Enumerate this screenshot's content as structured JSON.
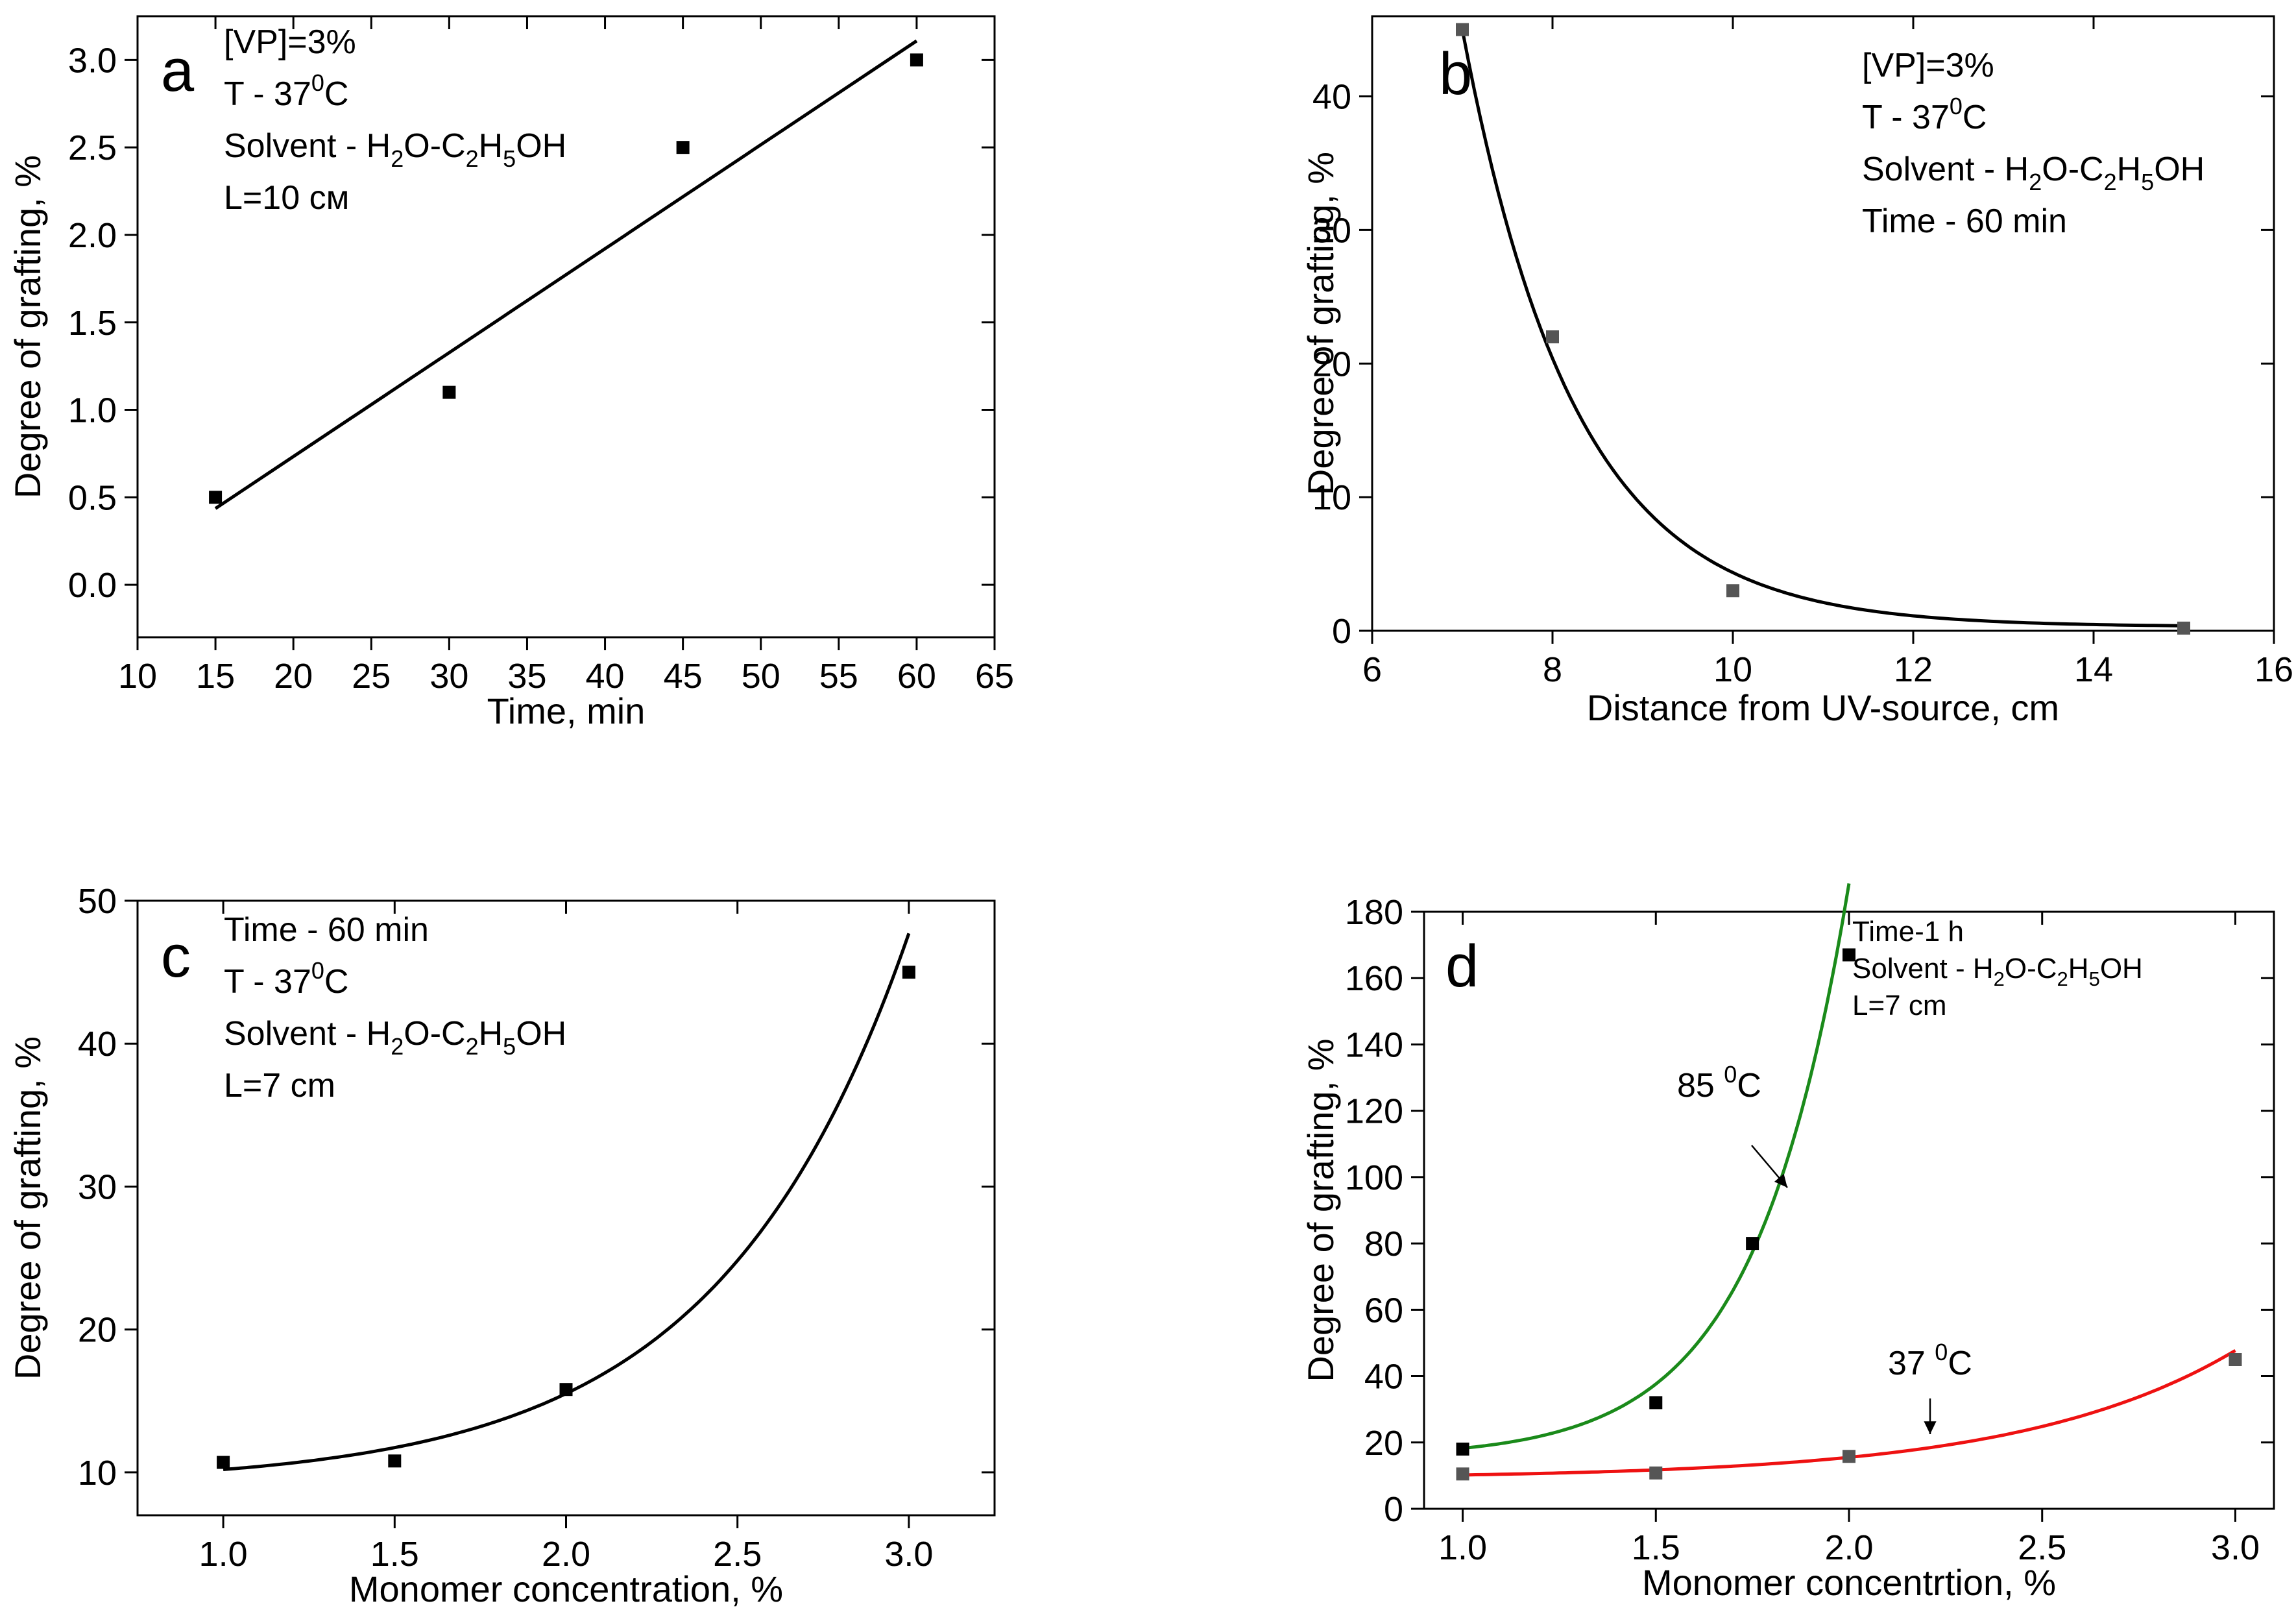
{
  "figure": {
    "panels": [
      {
        "letter": "a",
        "annotations": [
          {
            "parts": [
              {
                "t": "[VP]=3%"
              }
            ]
          },
          {
            "parts": [
              {
                "t": "T - 37"
              },
              {
                "t": "0",
                "sup": true
              },
              {
                "t": "C"
              }
            ]
          },
          {
            "parts": [
              {
                "t": "Solvent - H"
              },
              {
                "t": "2",
                "sub": true
              },
              {
                "t": "O-C"
              },
              {
                "t": "2",
                "sub": true
              },
              {
                "t": "H"
              },
              {
                "t": "5",
                "sub": true
              },
              {
                "t": "OH"
              }
            ]
          },
          {
            "parts": [
              {
                "t": "L=10 см"
              }
            ]
          }
        ]
      },
      {
        "letter": "b",
        "annotations": [
          {
            "parts": [
              {
                "t": "[VP]=3%"
              }
            ]
          },
          {
            "parts": [
              {
                "t": "T - 37"
              },
              {
                "t": "0",
                "sup": true
              },
              {
                "t": "C"
              }
            ]
          },
          {
            "parts": [
              {
                "t": "Solvent - H"
              },
              {
                "t": "2",
                "sub": true
              },
              {
                "t": "O-C"
              },
              {
                "t": "2",
                "sub": true
              },
              {
                "t": "H"
              },
              {
                "t": "5",
                "sub": true
              },
              {
                "t": "OH"
              }
            ]
          },
          {
            "parts": [
              {
                "t": "Time - 60 min"
              }
            ]
          }
        ]
      },
      {
        "letter": "c",
        "annotations": [
          {
            "parts": [
              {
                "t": "Time - 60 min"
              }
            ]
          },
          {
            "parts": [
              {
                "t": "T - 37"
              },
              {
                "t": "0",
                "sup": true
              },
              {
                "t": "C"
              }
            ]
          },
          {
            "parts": [
              {
                "t": "Solvent - H"
              },
              {
                "t": "2",
                "sub": true
              },
              {
                "t": "O-C"
              },
              {
                "t": "2",
                "sub": true
              },
              {
                "t": "H"
              },
              {
                "t": "5",
                "sub": true
              },
              {
                "t": "OH"
              }
            ]
          },
          {
            "parts": [
              {
                "t": "L=7 cm"
              }
            ]
          }
        ]
      },
      {
        "letter": "d",
        "annotations": [
          {
            "parts": [
              {
                "t": "Time-1 h"
              }
            ]
          },
          {
            "parts": [
              {
                "t": "Solvent - H"
              },
              {
                "t": "2",
                "sub": true
              },
              {
                "t": "O-C"
              },
              {
                "t": "2",
                "sub": true
              },
              {
                "t": "H"
              },
              {
                "t": "5",
                "sub": true
              },
              {
                "t": "OH"
              }
            ]
          },
          {
            "parts": [
              {
                "t": "L=7 cm"
              }
            ]
          }
        ],
        "series_labels": [
          {
            "parts": [
              {
                "t": "85 "
              },
              {
                "t": "0",
                "sup": true
              },
              {
                "t": "C"
              }
            ]
          },
          {
            "parts": [
              {
                "t": "37 "
              },
              {
                "t": "0",
                "sup": true
              },
              {
                "t": "C"
              }
            ]
          }
        ]
      }
    ]
  },
  "chart_data": [
    {
      "type": "scatter",
      "panel": "a",
      "xlabel": "Time, min",
      "ylabel": "Degree of grafting, %",
      "xlim": [
        10,
        65
      ],
      "ylim": [
        -0.3,
        3.25
      ],
      "xticks": [
        10,
        15,
        20,
        25,
        30,
        35,
        40,
        45,
        50,
        55,
        60,
        65
      ],
      "yticks": [
        0.0,
        0.5,
        1.0,
        1.5,
        2.0,
        2.5,
        3.0
      ],
      "ytick_decimals": 1,
      "series": [
        {
          "name": "data",
          "x": [
            15,
            30,
            45,
            60
          ],
          "y": [
            0.5,
            1.1,
            2.5,
            3.0
          ],
          "color": "#000000"
        }
      ],
      "fit": {
        "kind": "linear",
        "x_range": [
          15,
          60
        ],
        "slope": 0.0594,
        "intercept": -0.455,
        "color": "#000000"
      }
    },
    {
      "type": "scatter",
      "panel": "b",
      "xlabel": "Distance from UV-source, cm",
      "ylabel": "Degree of grafting, %",
      "xlim": [
        6,
        16
      ],
      "ylim": [
        0,
        46
      ],
      "xticks": [
        6,
        8,
        10,
        12,
        14,
        16
      ],
      "yticks": [
        0,
        10,
        20,
        30,
        40
      ],
      "ytick_decimals": 0,
      "series": [
        {
          "name": "data",
          "x": [
            7,
            8,
            10,
            15
          ],
          "y": [
            45,
            22,
            3,
            0.2
          ],
          "color": "#555555"
        }
      ],
      "fit": {
        "kind": "exp_decay",
        "x_range": [
          7,
          15
        ],
        "y0": 0.3,
        "A": 44.7,
        "x0": 7,
        "t": 1.25,
        "color": "#000000"
      }
    },
    {
      "type": "scatter",
      "panel": "c",
      "xlabel": "Monomer concentration, %",
      "ylabel": "Degree of grafting, %",
      "xlim": [
        0.75,
        3.25
      ],
      "ylim": [
        7,
        50
      ],
      "xticks": [
        1.0,
        1.5,
        2.0,
        2.5,
        3.0
      ],
      "xtick_decimals": 1,
      "yticks": [
        10,
        20,
        30,
        40,
        50
      ],
      "ytick_decimals": 0,
      "series": [
        {
          "name": "data",
          "x": [
            1.0,
            1.5,
            2.0,
            3.0
          ],
          "y": [
            10.7,
            10.8,
            15.8,
            45
          ],
          "color": "#000000"
        }
      ],
      "fit": {
        "kind": "exp_growth",
        "x_range": [
          1.0,
          3.0
        ],
        "y0": 9.15,
        "A": 1.05,
        "x0": 1.0,
        "t": 0.555,
        "color": "#000000"
      }
    },
    {
      "type": "scatter",
      "panel": "d",
      "xlabel": "Monomer concentrtion, %",
      "ylabel": "Degree of grafting, %",
      "xlim": [
        0.9,
        3.1
      ],
      "ylim": [
        0,
        180
      ],
      "xticks": [
        1.0,
        1.5,
        2.0,
        2.5,
        3.0
      ],
      "xtick_decimals": 1,
      "yticks": [
        0,
        20,
        40,
        60,
        80,
        100,
        120,
        140,
        160,
        180
      ],
      "ytick_decimals": 0,
      "series": [
        {
          "name": "85 °C",
          "x": [
            1.0,
            1.5,
            1.75,
            2.0
          ],
          "y": [
            18,
            32,
            80,
            167
          ],
          "color": "#000000"
        },
        {
          "name": "37 °C",
          "x": [
            1.0,
            1.5,
            2.0,
            3.0
          ],
          "y": [
            10.5,
            10.8,
            15.8,
            45
          ],
          "color": "#555555"
        }
      ],
      "fits": [
        {
          "kind": "exp_growth",
          "x_range": [
            1.0,
            2.0
          ],
          "y0": 15.4,
          "A": 2.85,
          "x0": 1.0,
          "t": 0.2435,
          "color": "#1a8a1a"
        },
        {
          "kind": "exp_growth",
          "x_range": [
            1.0,
            3.0
          ],
          "y0": 9.15,
          "A": 1.05,
          "x0": 1.0,
          "t": 0.555,
          "color": "#ee1111"
        }
      ]
    }
  ]
}
